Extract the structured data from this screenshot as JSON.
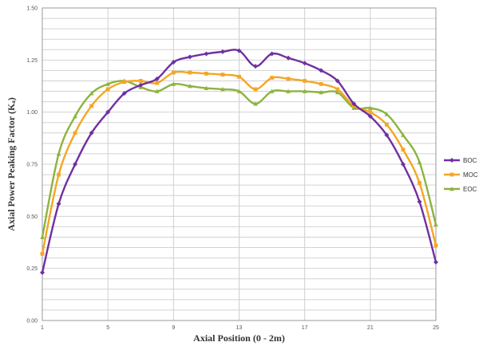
{
  "chart_data": {
    "type": "line",
    "title": "",
    "xlabel": "Axial Position (0 - 2m)",
    "ylabel": "Axial Power Peaking Factor (Kₐ)",
    "xlim": [
      1,
      25
    ],
    "ylim": [
      0,
      1.5
    ],
    "x_ticks": [
      1,
      5,
      9,
      13,
      17,
      21,
      25
    ],
    "y_ticks": [
      0.0,
      0.25,
      0.5,
      0.75,
      1.0,
      1.25,
      1.5
    ],
    "y_tick_labels": [
      "0.00",
      "0.25",
      "0.50",
      "0.75",
      "1.00",
      "1.25",
      "1.50"
    ],
    "grid": true,
    "legend_position": "right",
    "x": [
      1,
      2,
      3,
      4,
      5,
      6,
      7,
      8,
      9,
      10,
      11,
      12,
      13,
      14,
      15,
      16,
      17,
      18,
      19,
      20,
      21,
      22,
      23,
      24,
      25
    ],
    "series": [
      {
        "name": "BOC",
        "color": "#7030a0",
        "marker": "diamond",
        "values": [
          0.23,
          0.56,
          0.75,
          0.9,
          1.0,
          1.09,
          1.13,
          1.16,
          1.24,
          1.265,
          1.28,
          1.29,
          1.295,
          1.22,
          1.28,
          1.26,
          1.235,
          1.2,
          1.15,
          1.04,
          0.98,
          0.89,
          0.75,
          0.57,
          0.28
        ]
      },
      {
        "name": "MOC",
        "color": "#f5a623",
        "marker": "square",
        "values": [
          0.32,
          0.7,
          0.9,
          1.03,
          1.11,
          1.145,
          1.15,
          1.14,
          1.19,
          1.19,
          1.185,
          1.18,
          1.17,
          1.11,
          1.165,
          1.16,
          1.15,
          1.135,
          1.11,
          1.03,
          1.0,
          0.94,
          0.82,
          0.66,
          0.36
        ]
      },
      {
        "name": "EOC",
        "color": "#8db33f",
        "marker": "triangle",
        "values": [
          0.4,
          0.8,
          0.98,
          1.09,
          1.135,
          1.15,
          1.12,
          1.1,
          1.135,
          1.125,
          1.115,
          1.11,
          1.1,
          1.04,
          1.1,
          1.1,
          1.1,
          1.095,
          1.095,
          1.02,
          1.02,
          0.99,
          0.89,
          0.76,
          0.46
        ]
      }
    ]
  }
}
